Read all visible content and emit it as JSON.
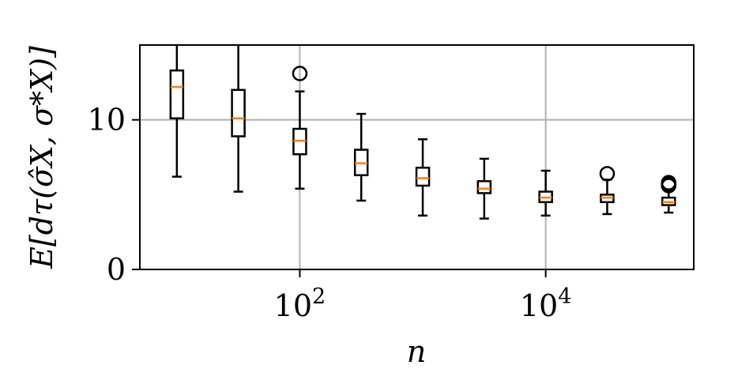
{
  "chart_data": {
    "type": "box",
    "title": "",
    "xlabel": "n",
    "ylabel": "E[dτ(σ̂X, σ*X)]",
    "xscale": "log",
    "xlim": [
      5,
      160000
    ],
    "ylim": [
      0,
      15
    ],
    "grid": true,
    "x_ticks": [
      {
        "value": 100,
        "base": "10",
        "exp": "2"
      },
      {
        "value": 10000,
        "base": "10",
        "exp": "4"
      }
    ],
    "y_ticks": [
      {
        "value": 0,
        "label": "0"
      },
      {
        "value": 10,
        "label": "10"
      }
    ],
    "colors": {
      "box": "#000000",
      "median": "#ff7f0e",
      "grid": "#b0b0b0"
    },
    "boxes": [
      {
        "x": 10,
        "whislo": 6.2,
        "q1": 10.1,
        "med": 12.2,
        "q3": 13.3,
        "whishi": 15.5,
        "fliers": []
      },
      {
        "x": 31.6,
        "whislo": 5.2,
        "q1": 8.9,
        "med": 10.1,
        "q3": 12.0,
        "whishi": 15.5,
        "fliers": []
      },
      {
        "x": 100,
        "whislo": 5.4,
        "q1": 7.7,
        "med": 8.6,
        "q3": 9.4,
        "whishi": 11.9,
        "fliers": [
          13.1
        ]
      },
      {
        "x": 316,
        "whislo": 4.6,
        "q1": 6.3,
        "med": 7.1,
        "q3": 8.0,
        "whishi": 10.4,
        "fliers": []
      },
      {
        "x": 1000,
        "whislo": 3.6,
        "q1": 5.6,
        "med": 6.1,
        "q3": 6.8,
        "whishi": 8.7,
        "fliers": []
      },
      {
        "x": 3162,
        "whislo": 3.4,
        "q1": 5.1,
        "med": 5.4,
        "q3": 5.9,
        "whishi": 7.4,
        "fliers": []
      },
      {
        "x": 10000,
        "whislo": 3.6,
        "q1": 4.5,
        "med": 4.8,
        "q3": 5.2,
        "whishi": 6.6,
        "fliers": []
      },
      {
        "x": 31623,
        "whislo": 3.7,
        "q1": 4.5,
        "med": 4.8,
        "q3": 5.0,
        "whishi": 6.0,
        "fliers": [
          6.4
        ]
      },
      {
        "x": 100000,
        "whislo": 3.8,
        "q1": 4.3,
        "med": 4.5,
        "q3": 4.8,
        "whishi": 5.3,
        "fliers": [
          5.6,
          5.7,
          5.8
        ]
      }
    ]
  }
}
